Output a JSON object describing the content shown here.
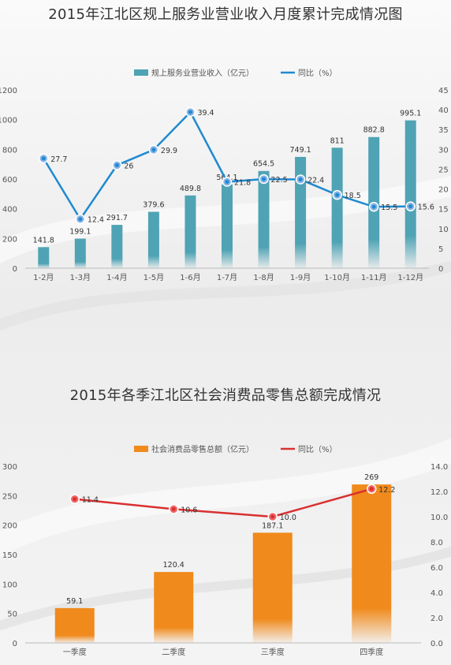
{
  "charts_page": {
    "title1": "2015年江北区规上服务业营业收入月度累计完成情况图",
    "title2": "2015年各季江北区社会消费品零售总额完成情况"
  },
  "chart_data": [
    {
      "type": "bar",
      "title": "2015年江北区规上服务业营业收入月度累计完成情况图",
      "categories": [
        "1-2月",
        "1-3月",
        "1-4月",
        "1-5月",
        "1-6月",
        "1-7月",
        "1-8月",
        "1-9月",
        "1-10月",
        "1-11月",
        "1-12月"
      ],
      "series": [
        {
          "name": "规上服务业营业收入（亿元）",
          "type": "bar",
          "axis": "left",
          "color": "#4fa3b4",
          "values": [
            141.8,
            199.1,
            291.7,
            379.6,
            489.8,
            564.1,
            654.5,
            749.1,
            811,
            882.8,
            995.1
          ],
          "labels": [
            "141.8",
            "199.1",
            "291.7",
            "379.6",
            "489.8",
            "564.1",
            "654.5",
            "749.1",
            "811",
            "882.8",
            "995.1"
          ]
        },
        {
          "name": "同比（%）",
          "type": "line",
          "axis": "right",
          "color": "#1f8ad0",
          "values": [
            27.7,
            12.4,
            26,
            29.9,
            39.4,
            21.8,
            22.5,
            22.4,
            18.5,
            15.5,
            15.6
          ],
          "labels": [
            "27.7",
            "12.4",
            "26",
            "29.9",
            "39.4",
            "21.8",
            "22.5",
            "22.4",
            "18.5",
            "15.5",
            "15.6"
          ]
        }
      ],
      "legend": [
        "规上服务业营业收入（亿元）",
        "同比（%）"
      ],
      "legend_position": "top-center",
      "ylim_left": [
        0,
        1200
      ],
      "yticks_left": [
        "0",
        "200",
        "400",
        "600",
        "800",
        "1000",
        "1200"
      ],
      "ylim_right": [
        0,
        45
      ],
      "yticks_right": [
        "0",
        "5",
        "10",
        "15",
        "20",
        "25",
        "30",
        "35",
        "40",
        "45"
      ],
      "grid": false
    },
    {
      "type": "bar",
      "title": "2015年各季江北区社会消费品零售总额完成情况",
      "categories": [
        "一季度",
        "二季度",
        "三季度",
        "四季度"
      ],
      "series": [
        {
          "name": "社会消费品零售总额（亿元）",
          "type": "bar",
          "axis": "left",
          "color": "#f08a1c",
          "values": [
            59.1,
            120.4,
            187.1,
            269
          ],
          "labels": [
            "59.1",
            "120.4",
            "187.1",
            "269"
          ]
        },
        {
          "name": "同比（%）",
          "type": "line",
          "axis": "right",
          "color": "#d93030",
          "values": [
            11.4,
            10.6,
            10.0,
            12.2
          ],
          "labels": [
            "11.4",
            "10.6",
            "10.0",
            "12.2"
          ]
        }
      ],
      "legend": [
        "社会消费品零售总额（亿元）",
        "同比（%）"
      ],
      "legend_position": "top-center",
      "ylim_left": [
        0,
        300
      ],
      "yticks_left": [
        "0",
        "50",
        "100",
        "150",
        "200",
        "250",
        "300"
      ],
      "ylim_right": [
        0,
        14
      ],
      "yticks_right": [
        "0.0",
        "2.0",
        "4.0",
        "6.0",
        "8.0",
        "10.0",
        "12.0",
        "14.0"
      ],
      "grid": false
    }
  ]
}
